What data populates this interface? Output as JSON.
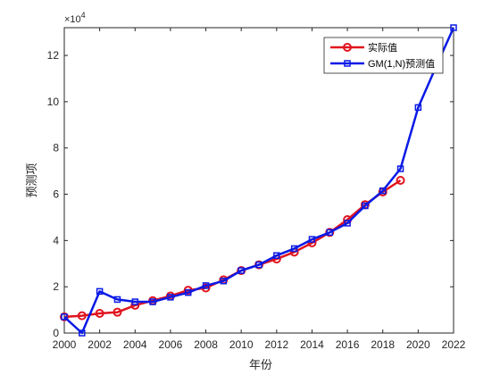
{
  "chart_data": {
    "type": "line",
    "xlabel": "年份",
    "ylabel": "预测项",
    "y_exponent_label": "×10",
    "y_exponent_power": "4",
    "y_scale_factor": 10000,
    "xlim": [
      2000,
      2022
    ],
    "ylim": [
      0,
      13.2
    ],
    "x_ticks": [
      "2000",
      "2002",
      "2004",
      "2006",
      "2008",
      "2010",
      "2012",
      "2014",
      "2016",
      "2018",
      "2020",
      "2022"
    ],
    "y_ticks": [
      "0",
      "2",
      "4",
      "6",
      "8",
      "10",
      "12"
    ],
    "legend_position": "top-right",
    "grid": false,
    "series": [
      {
        "name": "实际值",
        "color": "#e0141e",
        "marker": "circle",
        "x": [
          2000,
          2001,
          2002,
          2003,
          2004,
          2005,
          2006,
          2007,
          2008,
          2009,
          2010,
          2011,
          2012,
          2013,
          2014,
          2015,
          2016,
          2017,
          2018,
          2019
        ],
        "values": [
          0.7,
          0.75,
          0.85,
          0.9,
          1.2,
          1.4,
          1.6,
          1.85,
          1.95,
          2.3,
          2.7,
          2.95,
          3.2,
          3.5,
          3.9,
          4.35,
          4.9,
          5.55,
          6.1,
          6.6
        ]
      },
      {
        "name": "GM(1,N)预测值",
        "color": "#0a1ae6",
        "marker": "square",
        "x": [
          2000,
          2001,
          2002,
          2003,
          2004,
          2005,
          2006,
          2007,
          2008,
          2009,
          2010,
          2011,
          2012,
          2013,
          2014,
          2015,
          2016,
          2017,
          2018,
          2019,
          2020,
          2021,
          2022
        ],
        "values": [
          0.7,
          0.0,
          1.8,
          1.45,
          1.35,
          1.35,
          1.55,
          1.75,
          2.05,
          2.25,
          2.7,
          2.95,
          3.35,
          3.65,
          4.05,
          4.35,
          4.75,
          5.5,
          6.15,
          7.1,
          9.75,
          11.5,
          13.2
        ]
      }
    ]
  }
}
